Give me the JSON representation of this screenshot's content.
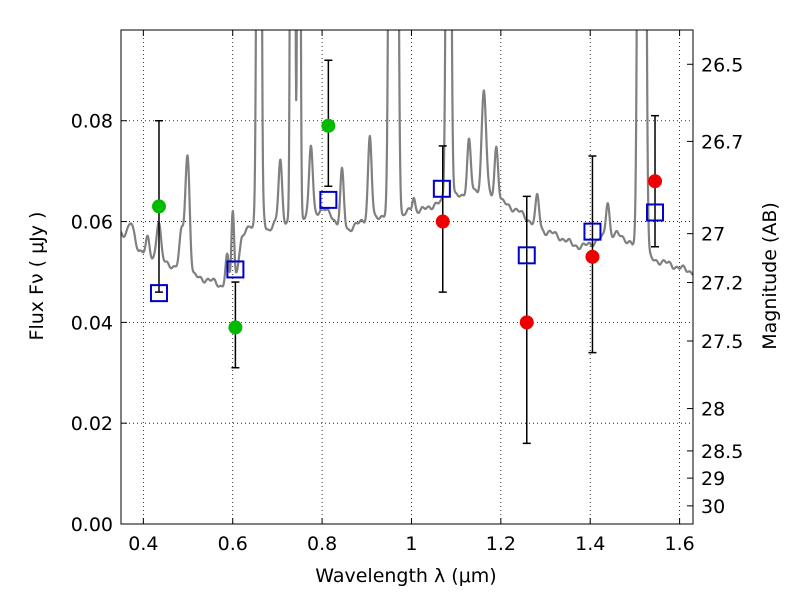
{
  "chart_data": {
    "type": "scatter",
    "xlabel": "Wavelength  λ (μm)",
    "ylabel": "Flux  Fν  ( μJy )",
    "y2label": "Magnitude (AB)",
    "xlim": [
      0.35,
      1.63
    ],
    "ylim": [
      0.0,
      0.098
    ],
    "grid": true,
    "x_ticks": [
      0.4,
      0.6,
      0.8,
      1.0,
      1.2,
      1.4,
      1.6
    ],
    "x_tick_labels": [
      "0.4",
      "0.6",
      "0.8",
      "1",
      "1.2",
      "1.4",
      "1.6"
    ],
    "y_ticks": [
      0.0,
      0.02,
      0.04,
      0.06,
      0.08
    ],
    "y_tick_labels": [
      "0.00",
      "0.02",
      "0.04",
      "0.06",
      "0.08"
    ],
    "mag_ticks": [
      {
        "label": "26.5",
        "flux": 0.0912
      },
      {
        "label": "26.7",
        "flux": 0.0759
      },
      {
        "label": "27",
        "flux": 0.0576
      },
      {
        "label": "27.2",
        "flux": 0.0479
      },
      {
        "label": "27.5",
        "flux": 0.0363
      },
      {
        "label": "28",
        "flux": 0.0229
      },
      {
        "label": "28.5",
        "flux": 0.0145
      },
      {
        "label": "29",
        "flux": 0.0091
      },
      {
        "label": "30",
        "flux": 0.0036
      }
    ],
    "colors": {
      "green": "#00bb00",
      "red": "#ee0000",
      "blue": "#0000cc",
      "spectrum": "#808080",
      "errorbar": "#000000"
    },
    "observed_points": [
      {
        "x": 0.435,
        "y": 0.063,
        "err_low": 0.046,
        "err_high": 0.08,
        "color": "green"
      },
      {
        "x": 0.606,
        "y": 0.039,
        "err_low": 0.031,
        "err_high": 0.048,
        "color": "green"
      },
      {
        "x": 0.814,
        "y": 0.079,
        "err_low": 0.067,
        "err_high": 0.092,
        "color": "green"
      },
      {
        "x": 1.07,
        "y": 0.06,
        "err_low": 0.046,
        "err_high": 0.075,
        "color": "red"
      },
      {
        "x": 1.258,
        "y": 0.04,
        "err_low": 0.016,
        "err_high": 0.065,
        "color": "red"
      },
      {
        "x": 1.405,
        "y": 0.053,
        "err_low": 0.034,
        "err_high": 0.073,
        "color": "red"
      },
      {
        "x": 1.545,
        "y": 0.068,
        "err_low": 0.055,
        "err_high": 0.081,
        "color": "red"
      }
    ],
    "model_points": [
      {
        "x": 0.435,
        "y": 0.0458
      },
      {
        "x": 0.606,
        "y": 0.0505
      },
      {
        "x": 0.814,
        "y": 0.0643
      },
      {
        "x": 1.068,
        "y": 0.0665
      },
      {
        "x": 1.258,
        "y": 0.0533
      },
      {
        "x": 1.405,
        "y": 0.058
      },
      {
        "x": 1.545,
        "y": 0.0618
      }
    ],
    "spectrum_continuum": [
      [
        0.35,
        0.058
      ],
      [
        0.37,
        0.0565
      ],
      [
        0.38,
        0.056
      ],
      [
        0.39,
        0.0545
      ],
      [
        0.4,
        0.054
      ],
      [
        0.42,
        0.0525
      ],
      [
        0.44,
        0.052
      ],
      [
        0.46,
        0.0515
      ],
      [
        0.48,
        0.0505
      ],
      [
        0.5,
        0.0495
      ],
      [
        0.52,
        0.049
      ],
      [
        0.54,
        0.0485
      ],
      [
        0.56,
        0.048
      ],
      [
        0.58,
        0.047
      ],
      [
        0.6,
        0.0455
      ],
      [
        0.62,
        0.0565
      ],
      [
        0.64,
        0.0595
      ],
      [
        0.66,
        0.0585
      ],
      [
        0.68,
        0.0585
      ],
      [
        0.7,
        0.06
      ],
      [
        0.72,
        0.06
      ],
      [
        0.74,
        0.06
      ],
      [
        0.76,
        0.061
      ],
      [
        0.78,
        0.0615
      ],
      [
        0.8,
        0.0625
      ],
      [
        0.82,
        0.0615
      ],
      [
        0.84,
        0.0585
      ],
      [
        0.86,
        0.0585
      ],
      [
        0.88,
        0.0595
      ],
      [
        0.9,
        0.0605
      ],
      [
        0.92,
        0.0605
      ],
      [
        0.94,
        0.0615
      ],
      [
        0.96,
        0.062
      ],
      [
        0.98,
        0.061
      ],
      [
        1.0,
        0.0625
      ],
      [
        1.02,
        0.062
      ],
      [
        1.04,
        0.063
      ],
      [
        1.06,
        0.0635
      ],
      [
        1.08,
        0.0645
      ],
      [
        1.1,
        0.065
      ],
      [
        1.12,
        0.0655
      ],
      [
        1.14,
        0.066
      ],
      [
        1.16,
        0.0655
      ],
      [
        1.18,
        0.065
      ],
      [
        1.2,
        0.064
      ],
      [
        1.22,
        0.063
      ],
      [
        1.24,
        0.062
      ],
      [
        1.26,
        0.0605
      ],
      [
        1.28,
        0.059
      ],
      [
        1.3,
        0.058
      ],
      [
        1.32,
        0.0575
      ],
      [
        1.34,
        0.0565
      ],
      [
        1.36,
        0.0555
      ],
      [
        1.38,
        0.055
      ],
      [
        1.4,
        0.0555
      ],
      [
        1.42,
        0.0565
      ],
      [
        1.44,
        0.057
      ],
      [
        1.46,
        0.0575
      ],
      [
        1.48,
        0.0565
      ],
      [
        1.5,
        0.055
      ],
      [
        1.52,
        0.0535
      ],
      [
        1.54,
        0.0525
      ],
      [
        1.56,
        0.052
      ],
      [
        1.58,
        0.0515
      ],
      [
        1.6,
        0.0508
      ],
      [
        1.63,
        0.05
      ]
    ],
    "spectrum_lines": [
      {
        "x": 0.372,
        "peak": 0.0595,
        "w": 0.006
      },
      {
        "x": 0.41,
        "peak": 0.0565,
        "w": 0.004
      },
      {
        "x": 0.434,
        "peak": 0.06,
        "w": 0.005
      },
      {
        "x": 0.486,
        "peak": 0.058,
        "w": 0.005
      },
      {
        "x": 0.496,
        "peak": 0.0625,
        "w": 0.004
      },
      {
        "x": 0.501,
        "peak": 0.065,
        "w": 0.004
      },
      {
        "x": 0.5876,
        "peak": 0.053,
        "w": 0.004
      },
      {
        "x": 0.6,
        "peak": 0.062,
        "w": 0.003
      },
      {
        "x": 0.6563,
        "peak": 0.065,
        "w": 0.004
      },
      {
        "x": 0.668,
        "peak": 0.062,
        "w": 0.003
      },
      {
        "x": 0.7065,
        "peak": 0.072,
        "w": 0.004
      },
      {
        "x": 0.732,
        "peak": 0.065,
        "w": 0.003
      },
      {
        "x": 0.7751,
        "peak": 0.075,
        "w": 0.004
      },
      {
        "x": 0.8446,
        "peak": 0.07,
        "w": 0.004
      },
      {
        "x": 0.9069,
        "peak": 0.077,
        "w": 0.004
      },
      {
        "x": 0.9532,
        "peak": 0.086,
        "w": 0.004
      },
      {
        "x": 1.005,
        "peak": 0.065,
        "w": 0.003
      },
      {
        "x": 1.1287,
        "peak": 0.076,
        "w": 0.004
      },
      {
        "x": 1.1621,
        "peak": 0.086,
        "w": 0.005
      },
      {
        "x": 1.19,
        "peak": 0.075,
        "w": 0.004
      },
      {
        "x": 1.2818,
        "peak": 0.065,
        "w": 0.004
      },
      {
        "x": 1.439,
        "peak": 0.064,
        "w": 0.004
      }
    ],
    "spectrum_saturated_lines": [
      {
        "x": 0.6583,
        "w": 0.0035
      },
      {
        "x": 0.6604,
        "w": 0.0025
      },
      {
        "x": 0.7319,
        "w": 0.0025
      },
      {
        "x": 0.7362,
        "w": 0.0025
      },
      {
        "x": 0.7481,
        "w": 0.0025
      },
      {
        "x": 0.955,
        "w": 0.004
      },
      {
        "x": 0.965,
        "w": 0.004
      },
      {
        "x": 1.083,
        "w": 0.004
      },
      {
        "x": 1.511,
        "w": 0.004
      },
      {
        "x": 1.52,
        "w": 0.004
      }
    ]
  }
}
